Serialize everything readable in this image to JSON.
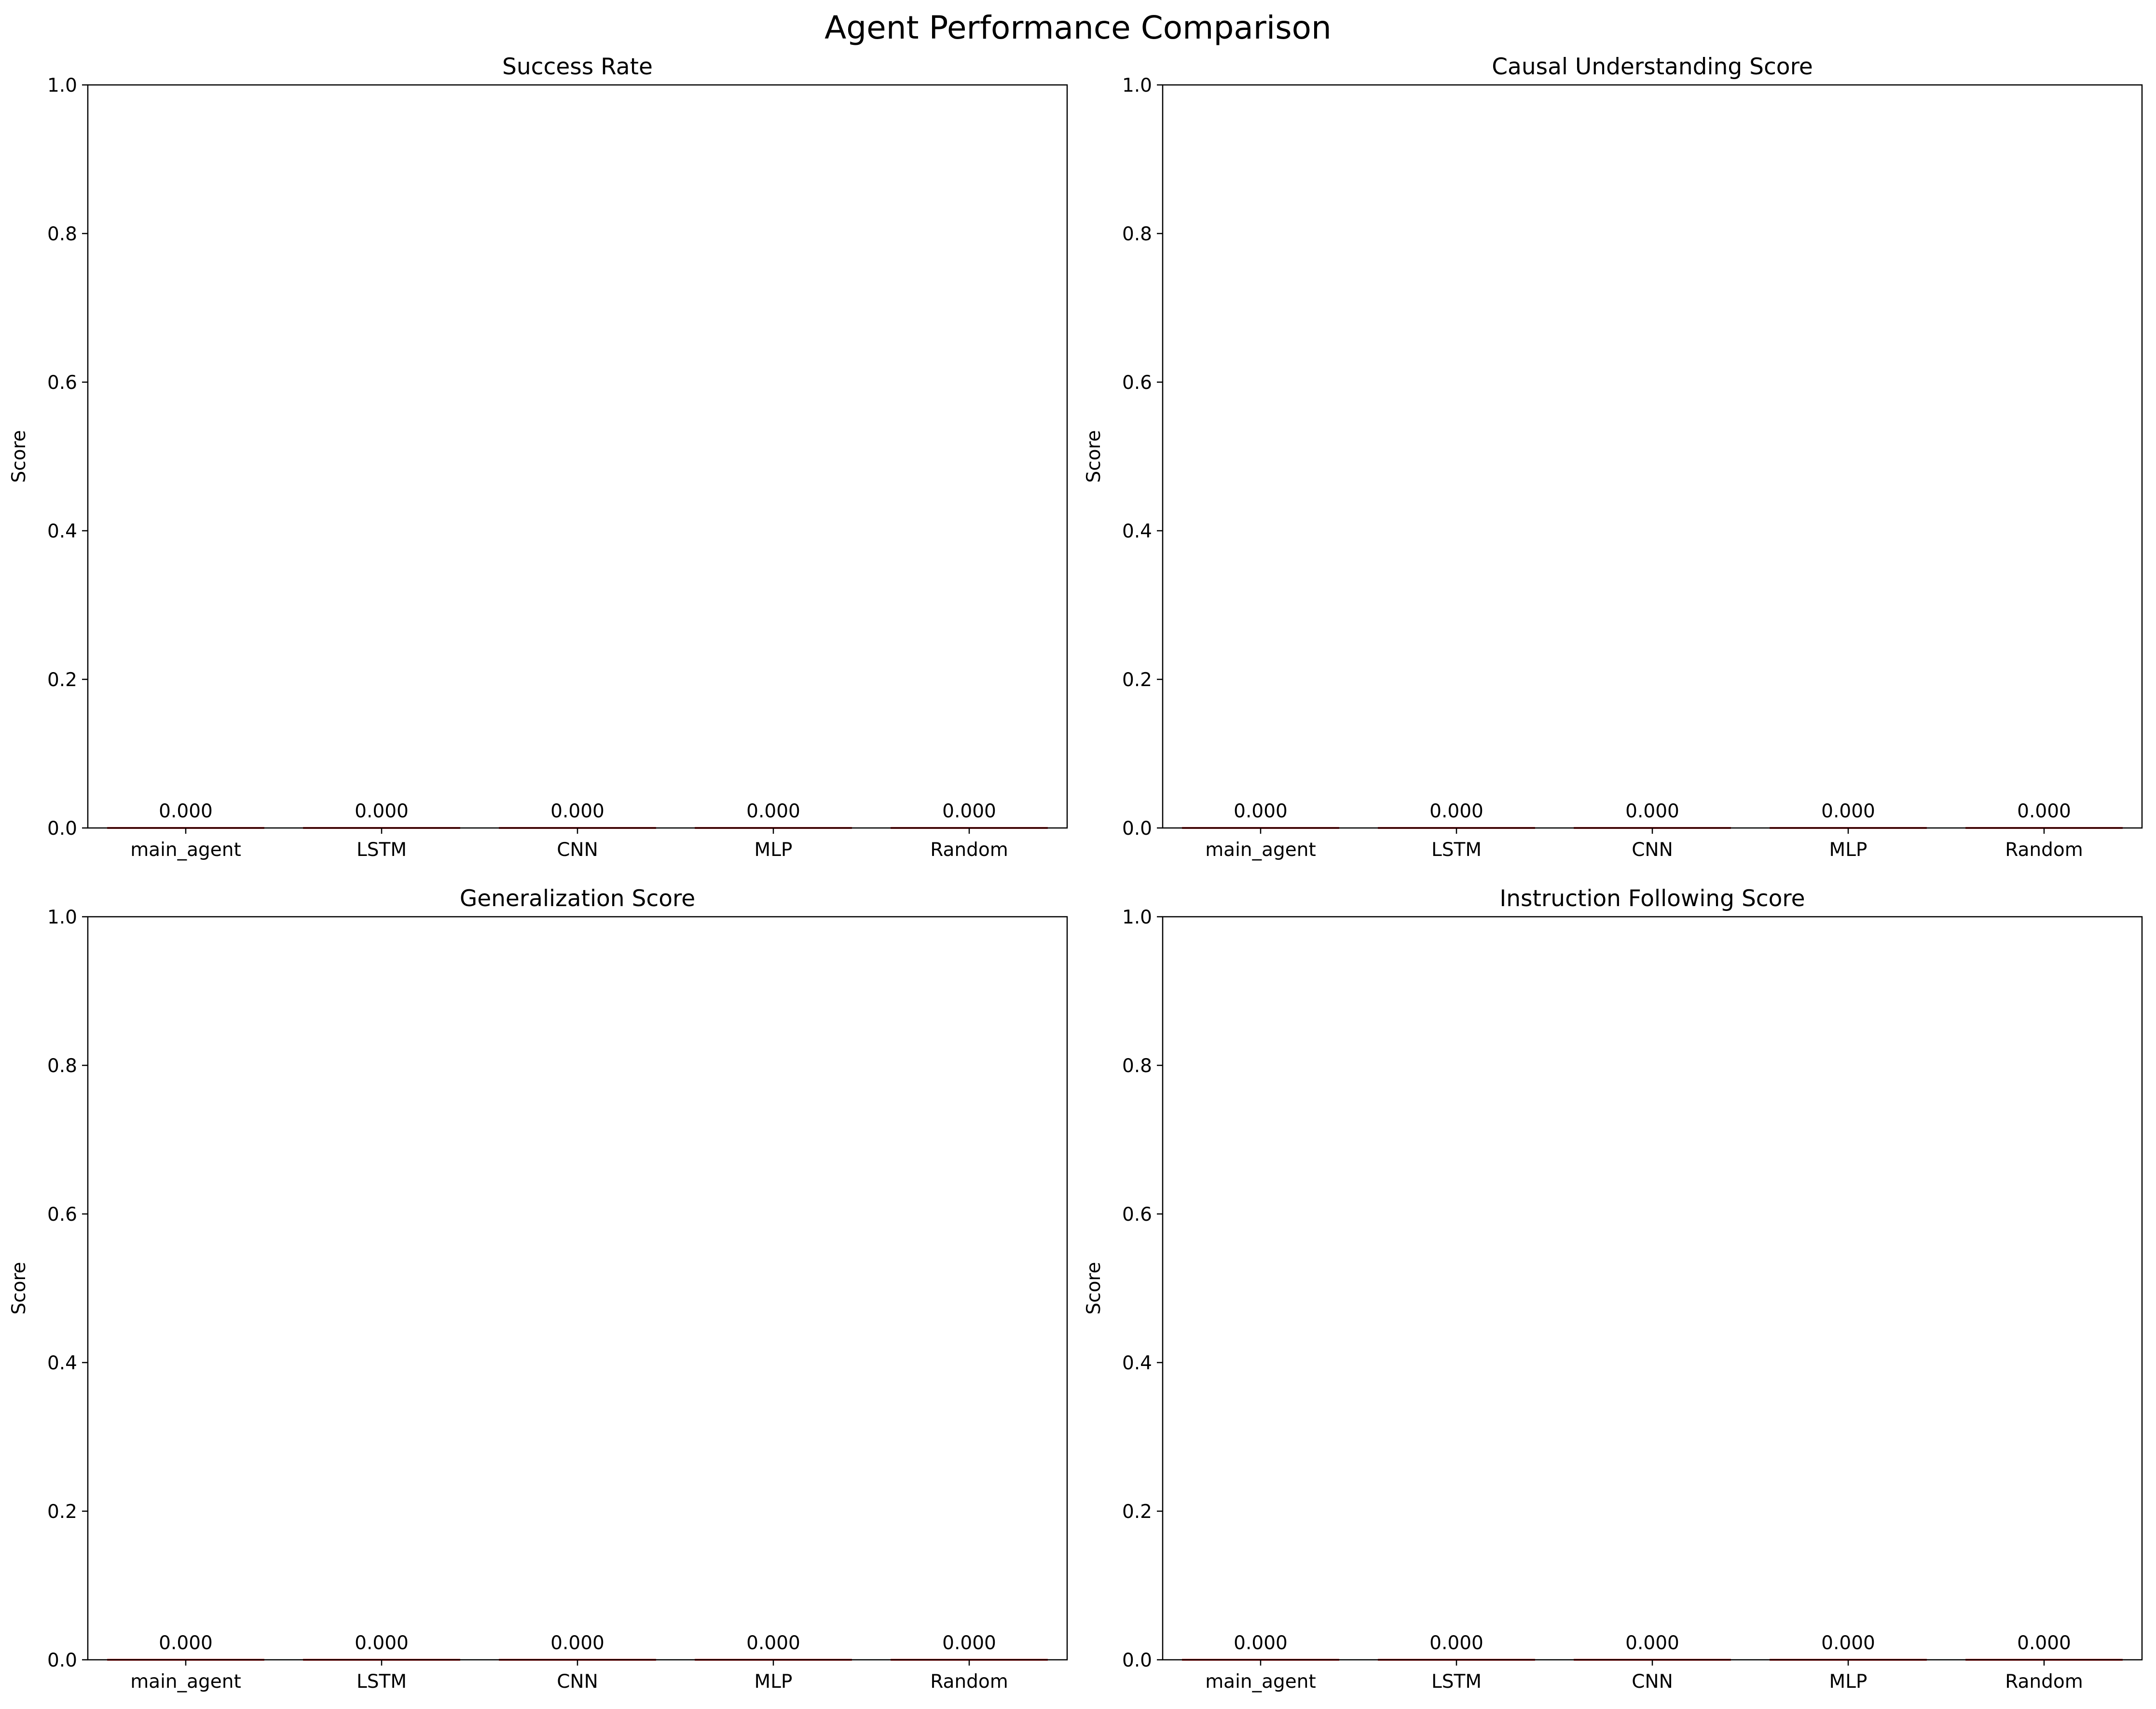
{
  "figure": {
    "title": "Agent Performance Comparison"
  },
  "chart_data": [
    {
      "type": "bar",
      "title": "Success Rate",
      "xlabel": "",
      "ylabel": "Score",
      "categories": [
        "main_agent",
        "LSTM",
        "CNN",
        "MLP",
        "Random"
      ],
      "values": [
        0.0,
        0.0,
        0.0,
        0.0,
        0.0
      ],
      "data_labels": [
        "0.000",
        "0.000",
        "0.000",
        "0.000",
        "0.000"
      ],
      "ylim": [
        0,
        1.0
      ],
      "yticks": [
        "0.0",
        "0.2",
        "0.4",
        "0.6",
        "0.8",
        "1.0"
      ],
      "grid": false,
      "bar_color": "#d62728"
    },
    {
      "type": "bar",
      "title": "Causal Understanding Score",
      "xlabel": "",
      "ylabel": "Score",
      "categories": [
        "main_agent",
        "LSTM",
        "CNN",
        "MLP",
        "Random"
      ],
      "values": [
        0.0,
        0.0,
        0.0,
        0.0,
        0.0
      ],
      "data_labels": [
        "0.000",
        "0.000",
        "0.000",
        "0.000",
        "0.000"
      ],
      "ylim": [
        0,
        1.0
      ],
      "yticks": [
        "0.0",
        "0.2",
        "0.4",
        "0.6",
        "0.8",
        "1.0"
      ],
      "grid": false,
      "bar_color": "#d62728"
    },
    {
      "type": "bar",
      "title": "Generalization Score",
      "xlabel": "",
      "ylabel": "Score",
      "categories": [
        "main_agent",
        "LSTM",
        "CNN",
        "MLP",
        "Random"
      ],
      "values": [
        0.0,
        0.0,
        0.0,
        0.0,
        0.0
      ],
      "data_labels": [
        "0.000",
        "0.000",
        "0.000",
        "0.000",
        "0.000"
      ],
      "ylim": [
        0,
        1.0
      ],
      "yticks": [
        "0.0",
        "0.2",
        "0.4",
        "0.6",
        "0.8",
        "1.0"
      ],
      "grid": false,
      "bar_color": "#d62728"
    },
    {
      "type": "bar",
      "title": "Instruction Following Score",
      "xlabel": "",
      "ylabel": "Score",
      "categories": [
        "main_agent",
        "LSTM",
        "CNN",
        "MLP",
        "Random"
      ],
      "values": [
        0.0,
        0.0,
        0.0,
        0.0,
        0.0
      ],
      "data_labels": [
        "0.000",
        "0.000",
        "0.000",
        "0.000",
        "0.000"
      ],
      "ylim": [
        0,
        1.0
      ],
      "yticks": [
        "0.0",
        "0.2",
        "0.4",
        "0.6",
        "0.8",
        "1.0"
      ],
      "grid": false,
      "bar_color": "#d62728"
    }
  ]
}
